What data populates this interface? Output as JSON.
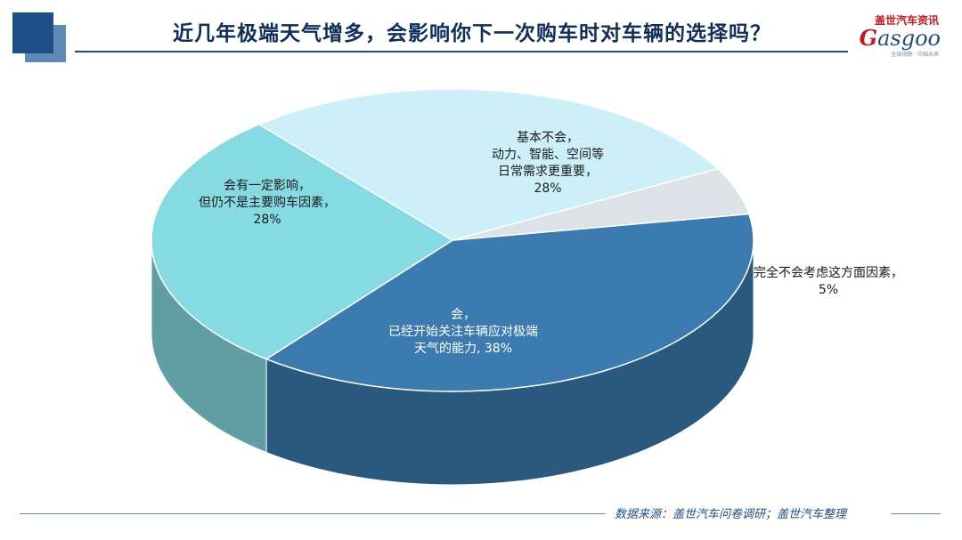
{
  "header": {
    "title": "近几年极端天气增多，会影响你下一次购车时对车辆的选择吗？"
  },
  "logo": {
    "cn": "盖世汽车资讯",
    "en_first": "G",
    "en_rest": "asgoo",
    "sub": "全球视野 · 中国未来"
  },
  "chart_data": {
    "type": "pie",
    "style": "3d",
    "slices": [
      {
        "label": "会，\n已经开始关注车辆应对极端\n天气的能力, 38%",
        "value": 38,
        "color": "#3b7bb0"
      },
      {
        "label": "会有一定影响，\n但仍不是主要购车因素，\n28%",
        "value": 28,
        "color": "#86dbe3"
      },
      {
        "label": "基本不会，\n动力、智能、空间等\n日常需求更重要，\n28%",
        "value": 28,
        "color": "#cdeff8"
      },
      {
        "label": "完全不会考虑这方面因素，\n5%",
        "value": 5,
        "color": "#dde2e6"
      }
    ]
  },
  "footer": {
    "source": "数据来源：盖世汽车问卷调研；盖世汽车整理"
  }
}
